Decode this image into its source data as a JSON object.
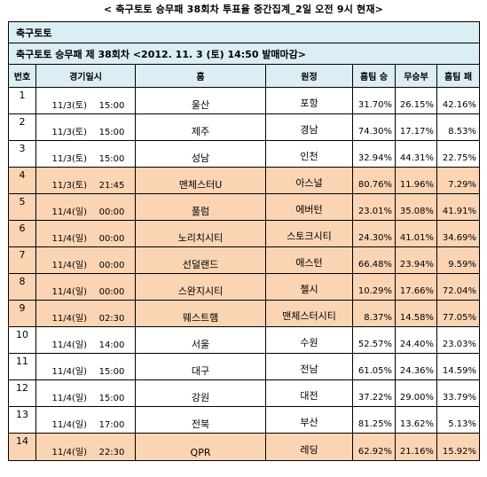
{
  "page_title": "< 축구토토 승무패 38회차 투표율 중간집계_2일 오전 9시 현재>",
  "section_title": "축구토토",
  "subtitle": "축구토토 승무패 제 38회차 <2012. 11. 3 (토) 14:50 발매마감>",
  "columns": [
    "번호",
    "경기일시",
    "홈",
    "원정",
    "홈팀 승",
    "무승부",
    "홈팀 패"
  ],
  "rows": [
    {
      "no": "1",
      "date": "11/3(토)",
      "time": "15:00",
      "home": "울산",
      "away": "포항",
      "win": "31.70%",
      "draw": "26.15%",
      "lose": "42.16%",
      "highlight": false
    },
    {
      "no": "2",
      "date": "11/3(토)",
      "time": "15:00",
      "home": "제주",
      "away": "경남",
      "win": "74.30%",
      "draw": "17.17%",
      "lose": "8.53%",
      "highlight": false
    },
    {
      "no": "3",
      "date": "11/3(토)",
      "time": "15:00",
      "home": "성남",
      "away": "인천",
      "win": "32.94%",
      "draw": "44.31%",
      "lose": "22.75%",
      "highlight": false
    },
    {
      "no": "4",
      "date": "11/3(토)",
      "time": "21:45",
      "home": "맨체스터U",
      "away": "아스널",
      "win": "80.76%",
      "draw": "11.96%",
      "lose": "7.29%",
      "highlight": true
    },
    {
      "no": "5",
      "date": "11/4(일)",
      "time": "00:00",
      "home": "풀럼",
      "away": "에버턴",
      "win": "23.01%",
      "draw": "35.08%",
      "lose": "41.91%",
      "highlight": true
    },
    {
      "no": "6",
      "date": "11/4(일)",
      "time": "00:00",
      "home": "노리치시티",
      "away": "스토크시티",
      "win": "24.30%",
      "draw": "41.01%",
      "lose": "34.69%",
      "highlight": true
    },
    {
      "no": "7",
      "date": "11/4(일)",
      "time": "00:00",
      "home": "선덜랜드",
      "away": "애스턴",
      "win": "66.48%",
      "draw": "23.94%",
      "lose": "9.59%",
      "highlight": true
    },
    {
      "no": "8",
      "date": "11/4(일)",
      "time": "00:00",
      "home": "스완지시티",
      "away": "첼시",
      "win": "10.29%",
      "draw": "17.66%",
      "lose": "72.04%",
      "highlight": true
    },
    {
      "no": "9",
      "date": "11/4(일)",
      "time": "02:30",
      "home": "웨스트햄",
      "away": "맨체스터시티",
      "win": "8.37%",
      "draw": "14.58%",
      "lose": "77.05%",
      "highlight": true
    },
    {
      "no": "10",
      "date": "11/4(일)",
      "time": "14:00",
      "home": "서울",
      "away": "수원",
      "win": "52.57%",
      "draw": "24.40%",
      "lose": "23.03%",
      "highlight": false
    },
    {
      "no": "11",
      "date": "11/4(일)",
      "time": "15:00",
      "home": "대구",
      "away": "전남",
      "win": "61.05%",
      "draw": "24.36%",
      "lose": "14.59%",
      "highlight": false
    },
    {
      "no": "12",
      "date": "11/4(일)",
      "time": "15:00",
      "home": "강원",
      "away": "대전",
      "win": "37.22%",
      "draw": "29.00%",
      "lose": "33.79%",
      "highlight": false
    },
    {
      "no": "13",
      "date": "11/4(일)",
      "time": "17:00",
      "home": "전북",
      "away": "부산",
      "win": "81.25%",
      "draw": "13.62%",
      "lose": "5.13%",
      "highlight": false
    },
    {
      "no": "14",
      "date": "11/4(일)",
      "time": "22:30",
      "home": "QPR",
      "away": "레딩",
      "win": "62.92%",
      "draw": "21.16%",
      "lose": "15.92%",
      "highlight": true
    }
  ],
  "colors": {
    "header_bg": "#daeef3",
    "highlight_bg": "#fbd4b4",
    "border": "#000000"
  }
}
